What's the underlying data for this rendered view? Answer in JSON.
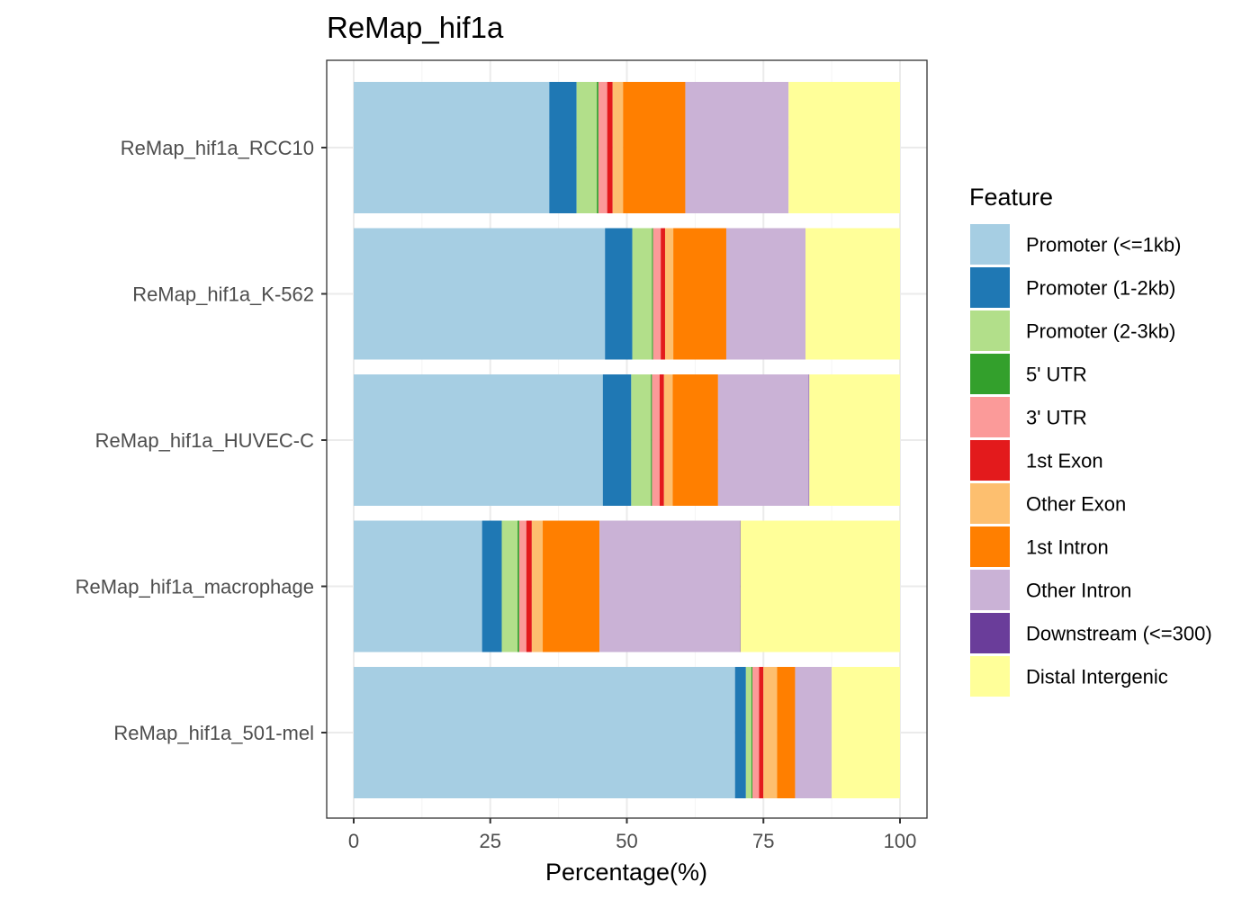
{
  "chart_data": {
    "type": "bar",
    "orientation": "horizontal",
    "stacked": true,
    "title": "ReMap_hif1a",
    "xlabel": "Percentage(%)",
    "ylabel": "",
    "xlim": [
      0,
      100
    ],
    "xticks": [
      0,
      25,
      50,
      75,
      100
    ],
    "grid": true,
    "legend": {
      "title": "Feature",
      "position": "right"
    },
    "categories": [
      "ReMap_hif1a_RCC10",
      "ReMap_hif1a_K-562",
      "ReMap_hif1a_HUVEC-C",
      "ReMap_hif1a_macrophage",
      "ReMap_hif1a_501-mel"
    ],
    "series": [
      {
        "name": "Promoter (<=1kb)",
        "color": "#a6cee3",
        "values": [
          35.8,
          46.0,
          45.6,
          23.5,
          69.8
        ]
      },
      {
        "name": "Promoter (1-2kb)",
        "color": "#1f78b4",
        "values": [
          5.0,
          5.0,
          5.2,
          3.6,
          2.0
        ]
      },
      {
        "name": "Promoter (2-3kb)",
        "color": "#b2df8a",
        "values": [
          3.7,
          3.6,
          3.6,
          2.9,
          1.0
        ]
      },
      {
        "name": "5' UTR",
        "color": "#33a02c",
        "values": [
          0.3,
          0.2,
          0.2,
          0.3,
          0.2
        ]
      },
      {
        "name": "3' UTR",
        "color": "#fb9a99",
        "values": [
          1.6,
          1.4,
          1.4,
          1.3,
          1.2
        ]
      },
      {
        "name": "1st Exon",
        "color": "#e31a1c",
        "values": [
          1.0,
          0.8,
          0.8,
          1.0,
          0.8
        ]
      },
      {
        "name": "Other Exon",
        "color": "#fdbf6f",
        "values": [
          1.9,
          1.5,
          1.6,
          2.0,
          2.5
        ]
      },
      {
        "name": "1st Intron",
        "color": "#ff7f00",
        "values": [
          11.4,
          9.7,
          8.3,
          10.4,
          3.3
        ]
      },
      {
        "name": "Other Intron",
        "color": "#cab2d6",
        "values": [
          18.9,
          14.5,
          16.6,
          25.7,
          6.7
        ]
      },
      {
        "name": "Downstream (<=300)",
        "color": "#6a3d9a",
        "values": [
          0.0,
          0.0,
          0.1,
          0.1,
          0.0
        ]
      },
      {
        "name": "Distal Intergenic",
        "color": "#ffff99",
        "values": [
          20.4,
          17.3,
          16.6,
          29.2,
          12.5
        ]
      }
    ]
  }
}
